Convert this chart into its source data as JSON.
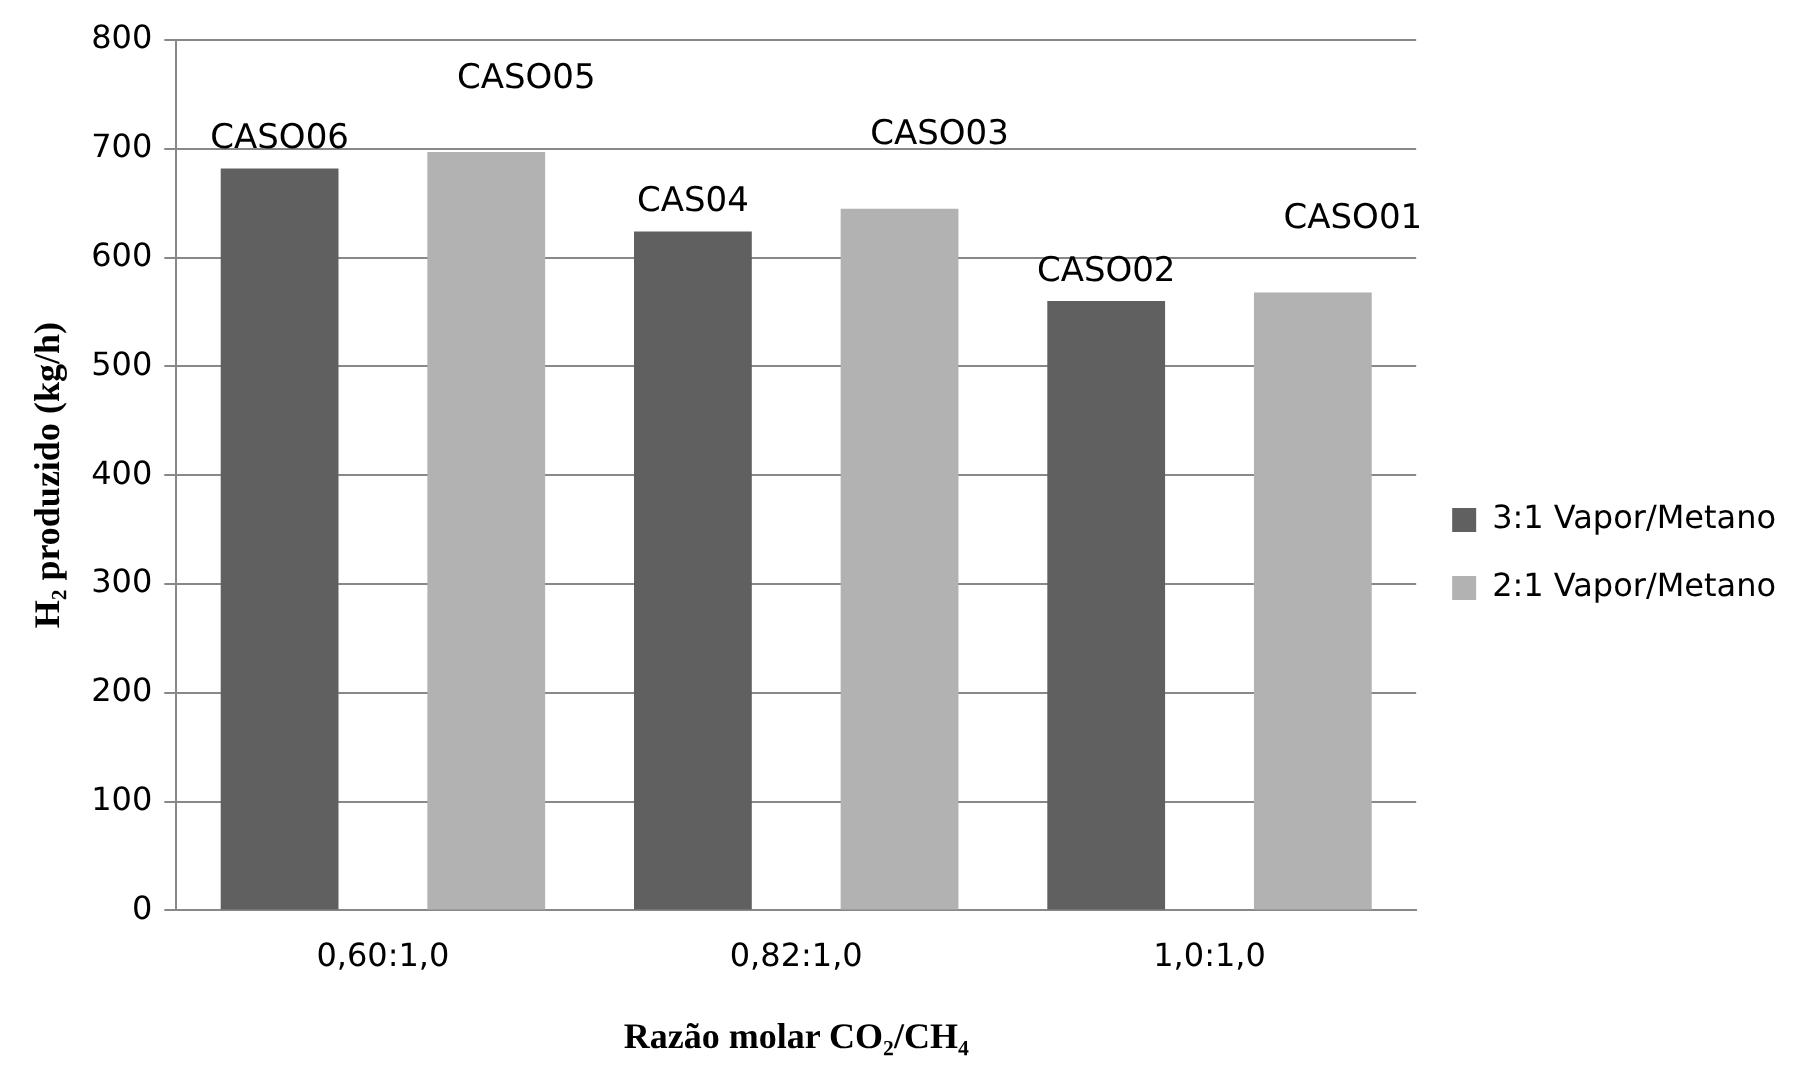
{
  "chart_data": {
    "type": "bar",
    "xlabel": "Razão molar CO₂/CH₄",
    "ylabel": "H₂ produzido (kg/h)",
    "categories": [
      "0,60:1,0",
      "0,82:1,0",
      "1,0:1,0"
    ],
    "series": [
      {
        "name": "3:1 Vapor/Metano",
        "color": "#606060",
        "values": [
          682,
          624,
          560
        ],
        "value_labels": [
          "CASO06",
          "CAS04",
          "CASO02"
        ]
      },
      {
        "name": "2:1 Vapor/Metano",
        "color": "#b2b2b2",
        "values": [
          697,
          645,
          568
        ],
        "value_labels": [
          "CASO05",
          "CASO03",
          "CASO01"
        ]
      }
    ],
    "ylim": [
      0,
      800
    ],
    "yticks": [
      0,
      100,
      200,
      300,
      400,
      500,
      600,
      700,
      800
    ],
    "grid": "y",
    "legend": "right"
  }
}
